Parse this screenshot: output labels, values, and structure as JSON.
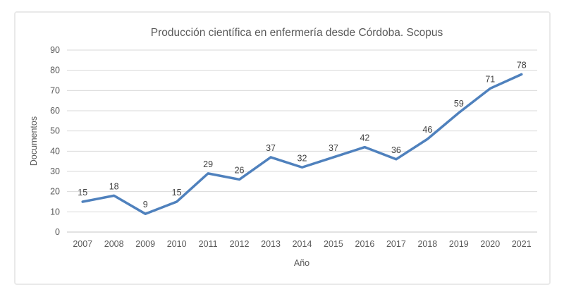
{
  "chart_data": {
    "type": "line",
    "title": "Producción científica en enfermería desde Córdoba. Scopus",
    "xlabel": "Año",
    "ylabel": "Documentos",
    "categories": [
      "2007",
      "2008",
      "2009",
      "2010",
      "2011",
      "2012",
      "2013",
      "2014",
      "2015",
      "2016",
      "2017",
      "2018",
      "2019",
      "2020",
      "2021"
    ],
    "values": [
      15,
      18,
      9,
      15,
      29,
      26,
      37,
      32,
      37,
      42,
      36,
      46,
      59,
      71,
      78
    ],
    "ylim": [
      0,
      90
    ],
    "ytick_step": 10,
    "yticks": [
      0,
      10,
      20,
      30,
      40,
      50,
      60,
      70,
      80,
      90
    ],
    "grid": true,
    "legend_position": "none",
    "data_labels": true,
    "colors": {
      "line": "#4F81BD",
      "grid": "#D9D9D9",
      "axis_line": "#C6C6C6",
      "title_text": "#595959",
      "tick_text": "#595959",
      "data_label_text": "#404040",
      "frame_border": "#E9E9E9",
      "background": "#FFFFFF"
    }
  }
}
